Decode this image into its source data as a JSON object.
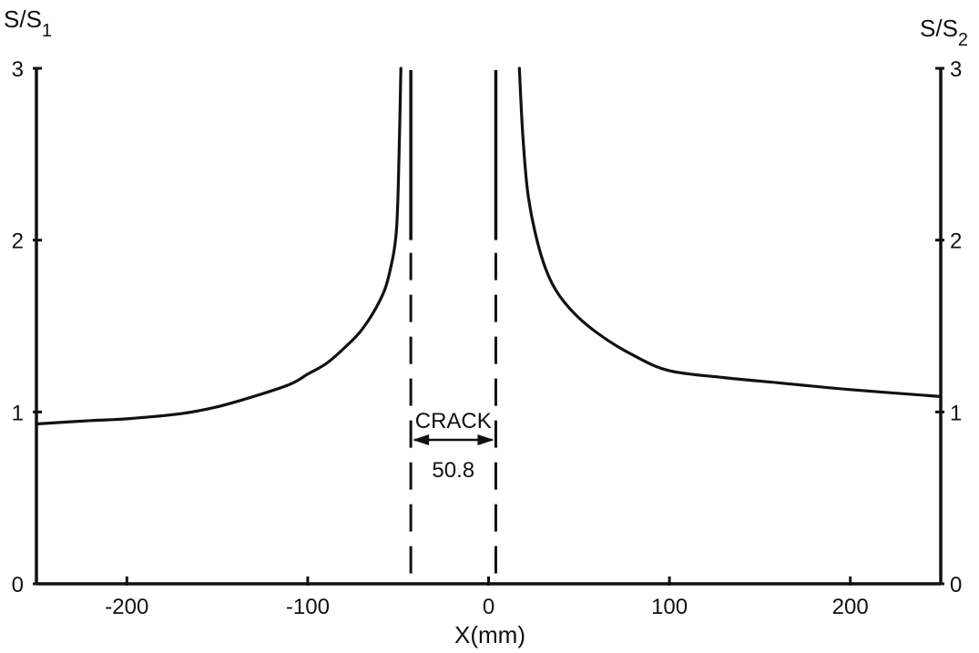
{
  "chart_data": {
    "type": "line",
    "xlabel": "X(mm)",
    "ylabel_left": {
      "main": "S/S",
      "sub": "1"
    },
    "ylabel_right": {
      "main": "S/S",
      "sub": "2"
    },
    "xlim": [
      -250,
      250
    ],
    "ylim": [
      0,
      3
    ],
    "x_ticks": [
      -200,
      -100,
      0,
      100,
      200
    ],
    "x_tick_labels": [
      "-200",
      "-100",
      "0",
      "100",
      "200"
    ],
    "y_ticks": [
      0,
      1,
      2,
      3
    ],
    "y_tick_labels": [
      "0",
      "1",
      "2",
      "3"
    ],
    "grid": false,
    "series": [
      {
        "segment": "left",
        "x": [
          -250,
          -220,
          -200,
          -170,
          -150,
          -130,
          -110,
          -100,
          -90,
          -80,
          -70,
          -60,
          -55,
          -51,
          -49.5,
          -48.5
        ],
        "y": [
          0.93,
          0.95,
          0.96,
          0.99,
          1.03,
          1.09,
          1.16,
          1.22,
          1.28,
          1.37,
          1.48,
          1.65,
          1.8,
          2.05,
          2.5,
          3.0
        ]
      },
      {
        "segment": "right",
        "x": [
          17,
          19,
          22,
          28,
          35,
          45,
          60,
          80,
          100,
          130,
          160,
          200,
          250
        ],
        "y": [
          3.0,
          2.6,
          2.25,
          1.95,
          1.75,
          1.6,
          1.46,
          1.33,
          1.24,
          1.2,
          1.17,
          1.13,
          1.09
        ]
      }
    ],
    "crack": {
      "edges_x": [
        -43,
        4
      ],
      "label": "CRACK",
      "width_label": "50.8"
    }
  }
}
